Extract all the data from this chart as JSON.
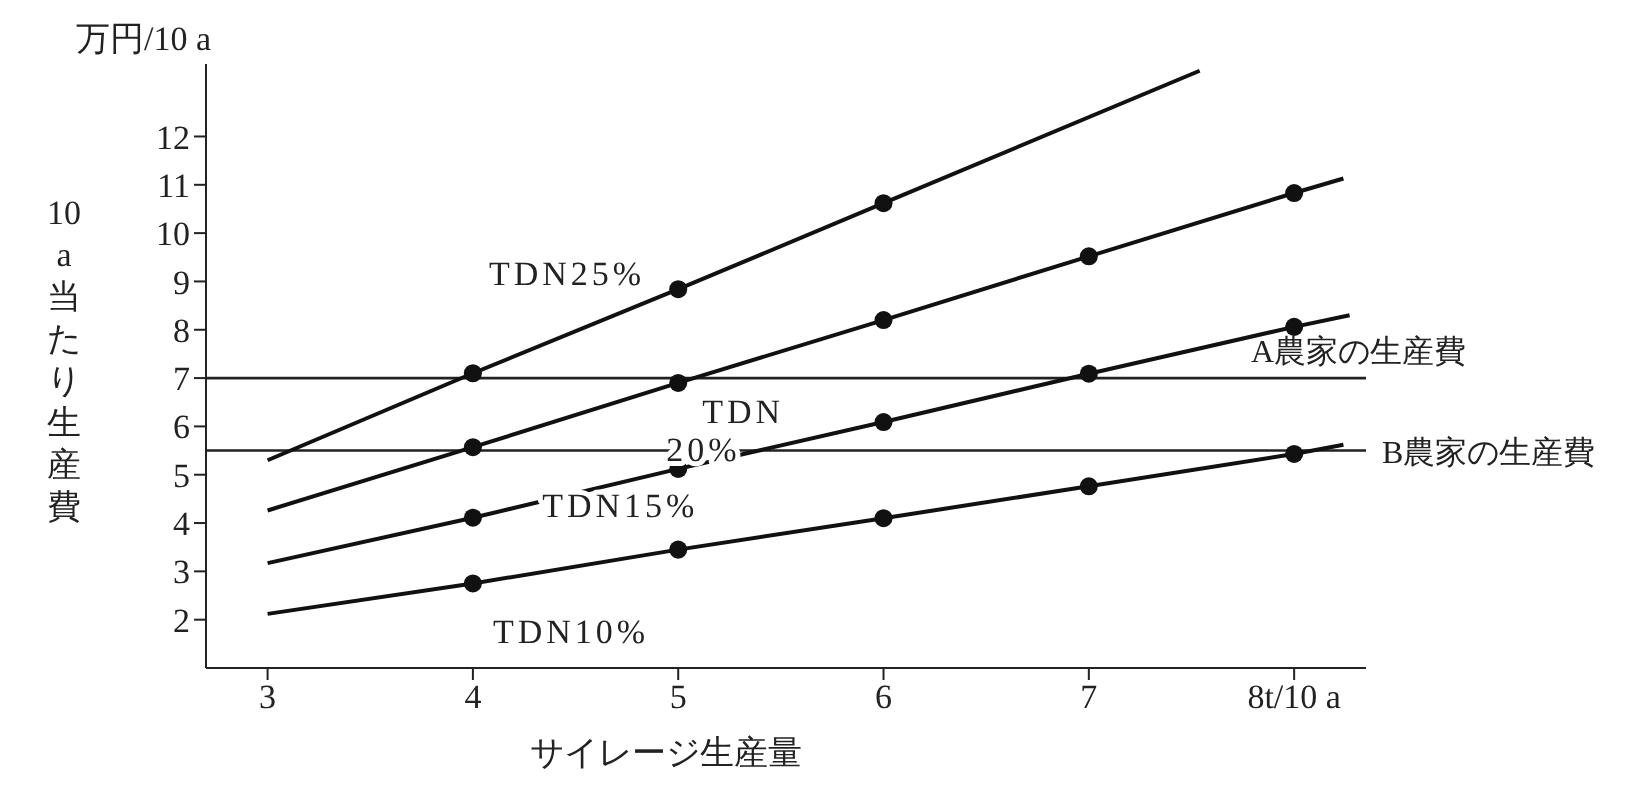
{
  "chart_data": {
    "type": "line",
    "annotations": [
      "万円/10 a"
    ],
    "xlabel": "サイレージ生産量",
    "ylabel": "10 a当たり生産費",
    "xlim": [
      2.7,
      8.35
    ],
    "xticks": [
      3,
      4,
      5,
      6,
      7,
      {
        "value": 8,
        "label": "8t/10 a"
      }
    ],
    "ylim": [
      1,
      13.5
    ],
    "yticks": [
      2,
      3,
      4,
      5,
      6,
      7,
      8,
      9,
      10,
      11,
      12
    ],
    "grid": false,
    "legend": false,
    "series": [
      {
        "name": "TDN25%",
        "color": "#111111",
        "marker": "none",
        "x": [
          3,
          4,
          5,
          6,
          7.54
        ],
        "values": [
          5.3,
          7.1,
          8.84,
          10.62,
          13.36
        ]
      },
      {
        "name": "TDN 20%",
        "color": "#111111",
        "marker": "none",
        "x": [
          3,
          4,
          5,
          6,
          7,
          8,
          8.24
        ],
        "values": [
          4.26,
          5.57,
          6.9,
          8.2,
          9.52,
          10.83,
          11.13
        ]
      },
      {
        "name": "TDN15%",
        "color": "#111111",
        "marker": "none",
        "x": [
          3,
          4,
          5,
          6,
          7,
          8,
          8.27
        ],
        "values": [
          3.17,
          4.11,
          5.12,
          6.09,
          7.09,
          8.06,
          8.3
        ]
      },
      {
        "name": "TDN10%",
        "color": "#111111",
        "marker": "none",
        "x": [
          3,
          4,
          5,
          6,
          7,
          8,
          8.24
        ],
        "values": [
          2.12,
          2.75,
          3.45,
          4.1,
          4.76,
          5.43,
          5.62
        ]
      },
      {
        "type": "scatter",
        "color": "#111111",
        "marker": "circle",
        "x": [
          4,
          5,
          6
        ],
        "values": [
          7.1,
          8.84,
          10.62
        ]
      },
      {
        "type": "scatter",
        "color": "#111111",
        "marker": "circle",
        "x": [
          4,
          5,
          6,
          7,
          8
        ],
        "values": [
          5.57,
          6.9,
          8.2,
          9.52,
          10.83
        ]
      },
      {
        "type": "scatter",
        "color": "#111111",
        "marker": "circle",
        "x": [
          4,
          5,
          6,
          7,
          8
        ],
        "values": [
          4.11,
          5.12,
          6.09,
          7.09,
          8.06
        ]
      },
      {
        "type": "scatter",
        "color": "#111111",
        "marker": "circle",
        "x": [
          4,
          5,
          6,
          7,
          8
        ],
        "values": [
          2.75,
          3.45,
          4.1,
          4.76,
          5.43
        ]
      }
    ],
    "ref_lines": [
      {
        "axis": "y",
        "value": 7,
        "label": "A農家の生産費"
      },
      {
        "axis": "y",
        "value": 5.5,
        "label": "B農家の生産費"
      }
    ]
  }
}
